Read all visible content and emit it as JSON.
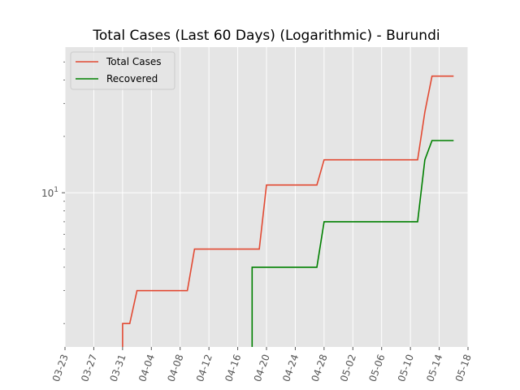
{
  "chart_data": {
    "type": "line",
    "title": "Total Cases (Last 60 Days) (Logarithmic) - Burundi",
    "xlabel": "",
    "ylabel": "",
    "yscale": "log",
    "grid": true,
    "legend_position": "top-left",
    "xlim": [
      "2020-03-23",
      "2020-05-18"
    ],
    "ylim": [
      1.5,
      60
    ],
    "x_ticks": [
      "03-23",
      "03-27",
      "03-31",
      "04-04",
      "04-08",
      "04-12",
      "04-16",
      "04-20",
      "04-24",
      "04-28",
      "05-02",
      "05-06",
      "05-10",
      "05-14",
      "05-18"
    ],
    "y_major_ticks": [
      {
        "value": 10,
        "base": "10",
        "exponent": "1"
      }
    ],
    "y_minor_ticks": [
      2,
      3,
      4,
      5,
      6,
      7,
      8,
      9,
      20,
      30,
      40,
      50
    ],
    "series": [
      {
        "name": "Total Cases",
        "color": "#E24A33",
        "points": [
          [
            "2020-03-31",
            1.5
          ],
          [
            "2020-03-31",
            2
          ],
          [
            "2020-04-01",
            2
          ],
          [
            "2020-04-02",
            3
          ],
          [
            "2020-04-09",
            3
          ],
          [
            "2020-04-10",
            5
          ],
          [
            "2020-04-19",
            5
          ],
          [
            "2020-04-20",
            11
          ],
          [
            "2020-04-27",
            11
          ],
          [
            "2020-04-28",
            15
          ],
          [
            "2020-05-11",
            15
          ],
          [
            "2020-05-12",
            27
          ],
          [
            "2020-05-13",
            42
          ],
          [
            "2020-05-16",
            42
          ]
        ]
      },
      {
        "name": "Recovered",
        "color": "#008000",
        "points": [
          [
            "2020-04-18",
            1.5
          ],
          [
            "2020-04-18",
            4
          ],
          [
            "2020-04-27",
            4
          ],
          [
            "2020-04-28",
            7
          ],
          [
            "2020-05-11",
            7
          ],
          [
            "2020-05-12",
            15
          ],
          [
            "2020-05-13",
            19
          ],
          [
            "2020-05-16",
            19
          ]
        ]
      }
    ]
  }
}
